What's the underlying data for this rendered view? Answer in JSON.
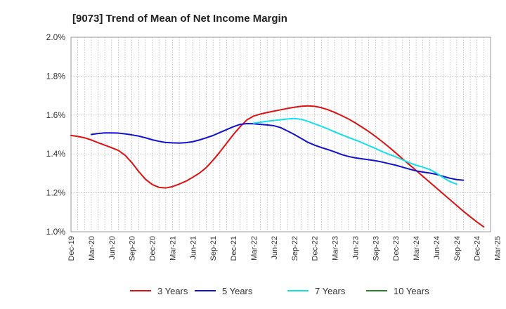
{
  "chart_data": {
    "type": "line",
    "title": "[9073]  Trend of Mean of Net Income Margin",
    "xlabel": "",
    "ylabel": "",
    "ylim": [
      1.0,
      2.0
    ],
    "y_ticks": [
      "1.0%",
      "1.2%",
      "1.4%",
      "1.6%",
      "1.8%",
      "2.0%"
    ],
    "y_tick_values": [
      1.0,
      1.2,
      1.4,
      1.6,
      1.8,
      2.0
    ],
    "x_ticks": [
      "Dec-19",
      "Mar-20",
      "Jun-20",
      "Sep-20",
      "Dec-20",
      "Mar-21",
      "Jun-21",
      "Sep-21",
      "Dec-21",
      "Mar-22",
      "Jun-22",
      "Sep-22",
      "Dec-22",
      "Mar-23",
      "Jun-23",
      "Sep-23",
      "Dec-23",
      "Mar-24",
      "Jun-24",
      "Sep-24",
      "Dec-24",
      "Mar-25"
    ],
    "x_months_start": "2019-12",
    "grid": "vertical dotted per month, horizontal dotted per tick",
    "legend_position": "bottom",
    "series": [
      {
        "name": "3 Years",
        "color": "#dd1111",
        "start": "Dec-19",
        "values": [
          1.495,
          1.49,
          1.483,
          1.472,
          1.458,
          1.445,
          1.432,
          1.418,
          1.393,
          1.355,
          1.31,
          1.27,
          1.243,
          1.228,
          1.225,
          1.232,
          1.245,
          1.26,
          1.28,
          1.302,
          1.33,
          1.368,
          1.41,
          1.455,
          1.5,
          1.54,
          1.575,
          1.595,
          1.605,
          1.613,
          1.62,
          1.627,
          1.634,
          1.64,
          1.645,
          1.647,
          1.645,
          1.638,
          1.627,
          1.613,
          1.597,
          1.58,
          1.56,
          1.538,
          1.515,
          1.49,
          1.463,
          1.435,
          1.405,
          1.375,
          1.345,
          1.315,
          1.285,
          1.255,
          1.225,
          1.195,
          1.165,
          1.135,
          1.105,
          1.077,
          1.05,
          1.025
        ]
      },
      {
        "name": "5 Years",
        "color": "#1111cc",
        "start": "Mar-20",
        "values": [
          1.5,
          1.505,
          1.508,
          1.508,
          1.507,
          1.503,
          1.498,
          1.492,
          1.483,
          1.473,
          1.465,
          1.459,
          1.457,
          1.456,
          1.458,
          1.463,
          1.472,
          1.483,
          1.495,
          1.51,
          1.525,
          1.54,
          1.552,
          1.556,
          1.555,
          1.552,
          1.549,
          1.545,
          1.535,
          1.518,
          1.5,
          1.48,
          1.46,
          1.445,
          1.433,
          1.422,
          1.41,
          1.397,
          1.387,
          1.38,
          1.375,
          1.37,
          1.365,
          1.358,
          1.35,
          1.342,
          1.332,
          1.322,
          1.313,
          1.307,
          1.302,
          1.295,
          1.285,
          1.275,
          1.268,
          1.265
        ]
      },
      {
        "name": "7 Years",
        "color": "#11e0e8",
        "start": "Mar-22",
        "values": [
          1.558,
          1.563,
          1.568,
          1.572,
          1.576,
          1.58,
          1.582,
          1.578,
          1.568,
          1.555,
          1.542,
          1.528,
          1.513,
          1.499,
          1.485,
          1.472,
          1.458,
          1.443,
          1.428,
          1.412,
          1.398,
          1.385,
          1.37,
          1.355,
          1.342,
          1.332,
          1.32,
          1.302,
          1.278,
          1.258,
          1.245
        ]
      },
      {
        "name": "10 Years",
        "color": "#228822",
        "start": "Dec-24",
        "values": []
      }
    ]
  }
}
